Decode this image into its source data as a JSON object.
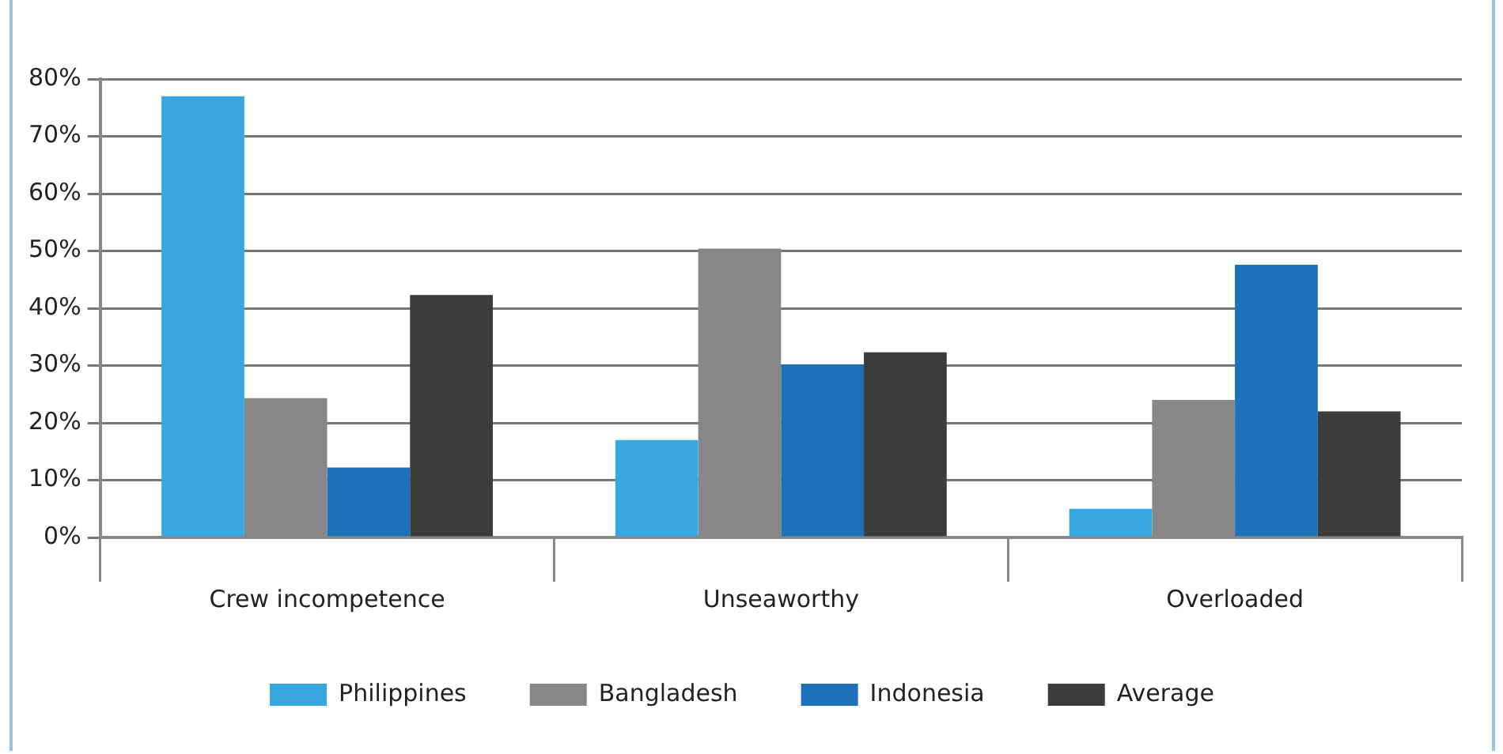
{
  "chart_data": {
    "type": "bar",
    "categories": [
      "Crew incompetence",
      "Unseaworthy",
      "Overloaded"
    ],
    "series": [
      {
        "name": "Philippines",
        "color": "#37a8df",
        "values": [
          77,
          17,
          5
        ]
      },
      {
        "name": "Bangladesh",
        "color": "#878787",
        "values": [
          24.3,
          50.4,
          24
        ]
      },
      {
        "name": "Indonesia",
        "color": "#1e71b8",
        "values": [
          12.2,
          30.2,
          47.6
        ]
      },
      {
        "name": "Average",
        "color": "#3c3c3b",
        "values": [
          42.3,
          32.3,
          22
        ]
      }
    ],
    "ylim": [
      0,
      80
    ],
    "yticks": [
      {
        "value": 0,
        "label": "0%"
      },
      {
        "value": 10,
        "label": "10%"
      },
      {
        "value": 20,
        "label": "20%"
      },
      {
        "value": 30,
        "label": "30%"
      },
      {
        "value": 40,
        "label": "40%"
      },
      {
        "value": 50,
        "label": "50%"
      },
      {
        "value": 60,
        "label": "60%"
      },
      {
        "value": 70,
        "label": "70%"
      },
      {
        "value": 80,
        "label": "80%"
      }
    ],
    "grid": "y",
    "legend": "bottom"
  }
}
